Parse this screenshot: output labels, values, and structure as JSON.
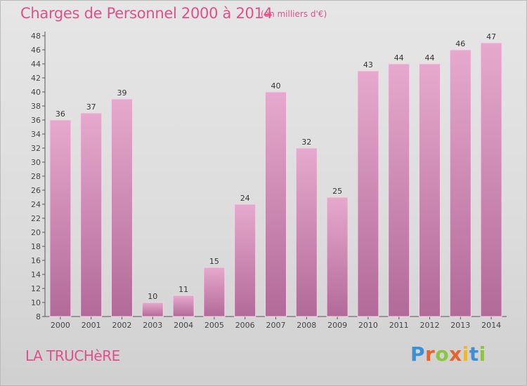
{
  "header": {
    "title": "Charges de Personnel 2000 à 2014",
    "unit": "(en milliers d'€)"
  },
  "footer": {
    "commune": "LA TRUCHèRE",
    "logo_letters": [
      "P",
      "r",
      "o",
      "x",
      "i",
      "t",
      "i"
    ],
    "logo_colors": [
      "#3d8fd6",
      "#e8632a",
      "#8cc63f",
      "#e8632a",
      "#f2b91e",
      "#3d8fd6",
      "#8cc63f"
    ]
  },
  "chart_data": {
    "type": "bar",
    "categories": [
      "2000",
      "2001",
      "2002",
      "2003",
      "2004",
      "2005",
      "2006",
      "2007",
      "2008",
      "2009",
      "2010",
      "2011",
      "2012",
      "2013",
      "2014"
    ],
    "values": [
      36,
      37,
      39,
      10,
      11,
      15,
      24,
      40,
      32,
      25,
      43,
      44,
      44,
      46,
      47
    ],
    "title": "Charges de Personnel 2000 à 2014",
    "ylim": [
      8,
      48
    ],
    "yticks": [
      8,
      10,
      12,
      14,
      16,
      18,
      20,
      22,
      24,
      26,
      28,
      30,
      32,
      34,
      36,
      38,
      40,
      42,
      44,
      46,
      48
    ],
    "grid": false,
    "colors": {
      "bar_top": "#e6a9cd",
      "bar_bottom": "#b26a98",
      "bar_edge": "#f4d2e6",
      "title": "#e0508a"
    }
  }
}
